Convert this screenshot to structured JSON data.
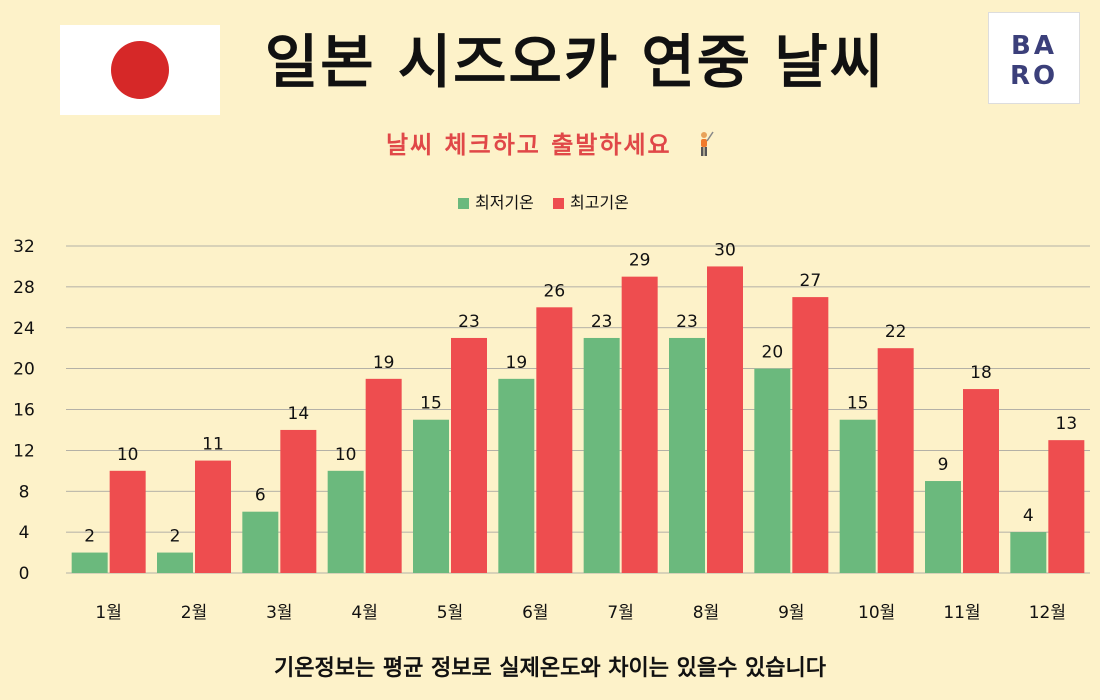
{
  "header": {
    "title": "일본 시즈오카 연중 날씨",
    "subtitle": "날씨 체크하고 출발하세요",
    "subtitle_icon": "golfer-icon",
    "logo_line1": "BA",
    "logo_line2": "RO",
    "flag_icon": "japan-flag-icon"
  },
  "footer": {
    "note": "기온정보는 평균 정보로 실제온도와 차이는 있을수 있습니다"
  },
  "colors": {
    "low": "#6bb97d",
    "high": "#ee4d4f",
    "background": "#fdf2c9",
    "accent": "#e04848"
  },
  "chart_data": {
    "type": "bar",
    "title": "",
    "xlabel": "",
    "ylabel": "",
    "categories": [
      "1월",
      "2월",
      "3월",
      "4월",
      "5월",
      "6월",
      "7월",
      "8월",
      "9월",
      "10월",
      "11월",
      "12월"
    ],
    "series": [
      {
        "name": "최저기온",
        "color": "#6bb97d",
        "values": [
          2,
          2,
          6,
          10,
          15,
          19,
          23,
          23,
          20,
          15,
          9,
          4
        ]
      },
      {
        "name": "최고기온",
        "color": "#ee4d4f",
        "values": [
          10,
          11,
          14,
          19,
          23,
          26,
          29,
          30,
          27,
          22,
          18,
          13
        ]
      }
    ],
    "ylim": [
      0,
      32
    ],
    "yticks": [
      0,
      4,
      8,
      12,
      16,
      20,
      24,
      28,
      32
    ],
    "grid": true,
    "legend": "top-center",
    "data_labels": true
  }
}
